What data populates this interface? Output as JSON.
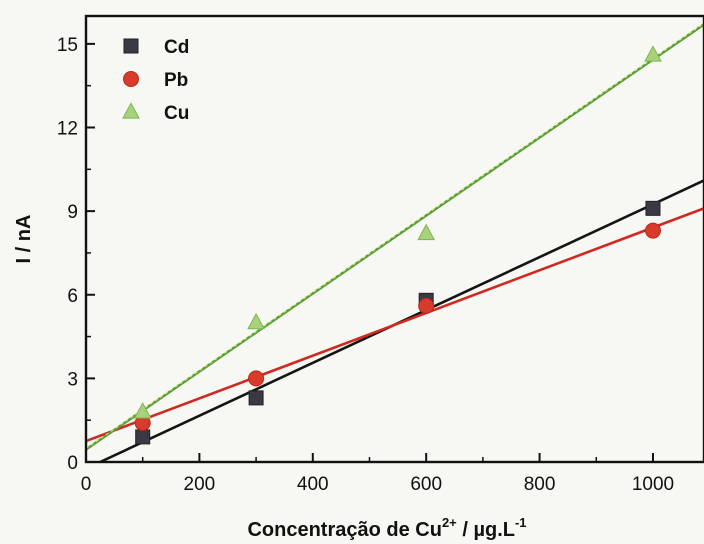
{
  "chart_data": {
    "type": "scatter",
    "xlabel": {
      "main": "Concentração de Cu",
      "sup1": "2+",
      "mid": " / µg.L",
      "sup2": "-1"
    },
    "ylabel": "I / nA",
    "xlim": [
      0,
      1090
    ],
    "ylim": [
      0,
      16
    ],
    "xticks": [
      0,
      200,
      400,
      600,
      800,
      1000
    ],
    "yticks": [
      0,
      3,
      6,
      9,
      12,
      15
    ],
    "legend_position": "top-left",
    "series": [
      {
        "name": "Cd",
        "marker": "square",
        "color": "#3a3a44",
        "line_color": "#151515",
        "x": [
          100,
          300,
          600,
          1000
        ],
        "y": [
          0.9,
          2.3,
          5.8,
          9.1
        ],
        "fit": {
          "x": [
            25,
            1090
          ],
          "y": [
            0.0,
            10.1
          ]
        }
      },
      {
        "name": "Pb",
        "marker": "circle",
        "color": "#d83a2c",
        "line_color": "#d02a20",
        "x": [
          100,
          300,
          600,
          1000
        ],
        "y": [
          1.4,
          3.0,
          5.6,
          8.3
        ],
        "fit": {
          "x": [
            0,
            1090
          ],
          "y": [
            0.75,
            9.1
          ]
        }
      },
      {
        "name": "Cu",
        "marker": "triangle",
        "color": "#a8d27a",
        "line_color": "#5a9e3a",
        "x": [
          100,
          300,
          600,
          1000
        ],
        "y": [
          1.8,
          5.0,
          8.2,
          14.6
        ],
        "fit": {
          "x": [
            0,
            1090
          ],
          "y": [
            0.45,
            15.7
          ]
        }
      }
    ]
  }
}
